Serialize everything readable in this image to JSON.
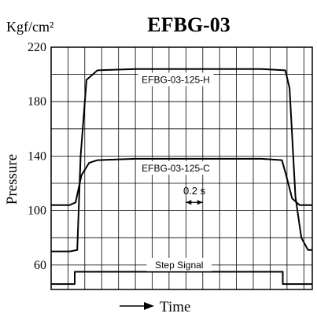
{
  "chart_data": {
    "type": "line",
    "title": "EFBG-03",
    "unit_label": "Kgf/cm²",
    "ylabel": "Pressure",
    "xlabel": "Time",
    "ylim": [
      42,
      220
    ],
    "yticks": [
      "220",
      "180",
      "140",
      "100",
      "60"
    ],
    "ytick_values": [
      220,
      180,
      140,
      100,
      60
    ],
    "x_grid_step_s": 0.2,
    "xlim": [
      0,
      3.1
    ],
    "grid": true,
    "time_scale_label": "0.2 s",
    "series": [
      {
        "name": "EFBG-03-125-H",
        "x": [
          0,
          0.22,
          0.31,
          0.35,
          0.42,
          0.55,
          1.0,
          2.5,
          2.78,
          2.83,
          2.9,
          2.97,
          3.05,
          3.1
        ],
        "values": [
          70,
          70,
          71,
          140,
          196,
          203,
          204,
          204,
          203,
          190,
          110,
          80,
          71,
          71
        ]
      },
      {
        "name": "EFBG-03-125-C",
        "x": [
          0,
          0.22,
          0.29,
          0.36,
          0.45,
          0.55,
          1.0,
          2.5,
          2.74,
          2.79,
          2.86,
          2.95,
          3.05,
          3.1
        ],
        "values": [
          104,
          104,
          106,
          126,
          135,
          137,
          138,
          138,
          137,
          126,
          109,
          104,
          104,
          104
        ]
      },
      {
        "name": "Step Signal",
        "x": [
          0,
          0.28,
          0.28,
          2.75,
          2.75,
          3.1
        ],
        "values": [
          46,
          46,
          55,
          55,
          46,
          46
        ]
      }
    ]
  }
}
